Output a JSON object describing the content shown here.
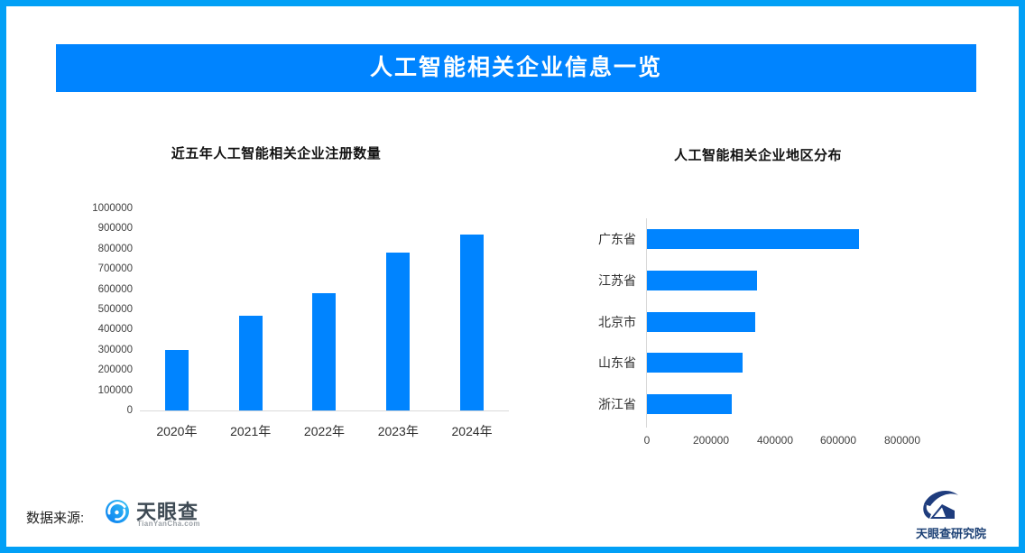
{
  "banner": {
    "title": "人工智能相关企业信息一览"
  },
  "footer": {
    "source_label": "数据来源:",
    "tianyancha": {
      "name": "天眼查",
      "domain": "TianYanCha.com",
      "icon": "tianyancha-logo-icon"
    },
    "research": {
      "name": "天眼查研究院",
      "icon": "research-institute-logo-icon"
    }
  },
  "colors": {
    "accent": "#0084ff",
    "frame": "#02a0f6",
    "axis_line": "#d9d9d9",
    "tick_text": "#404040"
  },
  "chart_data": [
    {
      "type": "bar",
      "orientation": "vertical",
      "title": "近五年人工智能相关企业注册数量",
      "categories": [
        "2020年",
        "2021年",
        "2022年",
        "2023年",
        "2024年"
      ],
      "values": [
        300000,
        470000,
        580000,
        780000,
        870000
      ],
      "ylim": [
        0,
        1000000
      ],
      "ytick_step": 100000,
      "ytick_labels": [
        "0",
        "100000",
        "200000",
        "300000",
        "400000",
        "500000",
        "600000",
        "700000",
        "800000",
        "900000",
        "1000000"
      ],
      "bar_color": "#0084ff",
      "grid": false,
      "legend_position": "none"
    },
    {
      "type": "bar",
      "orientation": "horizontal",
      "title": "人工智能相关企业地区分布",
      "categories": [
        "广东省",
        "江苏省",
        "北京市",
        "山东省",
        "浙江省"
      ],
      "values": [
        665000,
        345000,
        340000,
        300000,
        265000
      ],
      "xlim": [
        0,
        800000
      ],
      "xtick_step": 200000,
      "xtick_labels": [
        "0",
        "200000",
        "400000",
        "600000",
        "800000"
      ],
      "bar_color": "#0084ff",
      "grid": false,
      "legend_position": "none"
    }
  ]
}
